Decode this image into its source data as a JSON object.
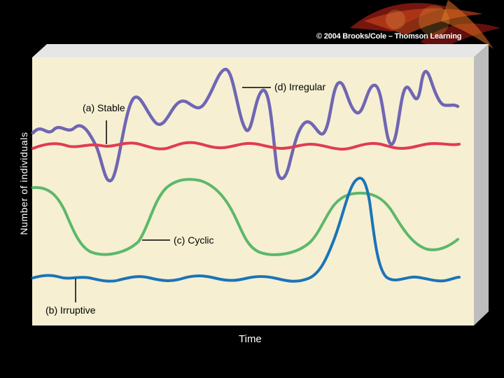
{
  "copyright": "© 2004 Brooks/Cole – Thomson Learning",
  "axes": {
    "y_label": "Number of individuals",
    "x_label": "Time"
  },
  "curves": {
    "irregular": {
      "label": "(d) Irregular",
      "color": "#6f66b3"
    },
    "stable": {
      "label": "(a) Stable",
      "color": "#e03c52"
    },
    "cyclic": {
      "label": "(c) Cyclic",
      "color": "#5cb86a"
    },
    "irruptive": {
      "label": "(b) Irruptive",
      "color": "#1a74b8"
    }
  },
  "colors": {
    "background": "#000000",
    "panel_front": "#f6efd2",
    "panel_top": "#e6e6e6",
    "panel_side": "#bdbdbd"
  }
}
